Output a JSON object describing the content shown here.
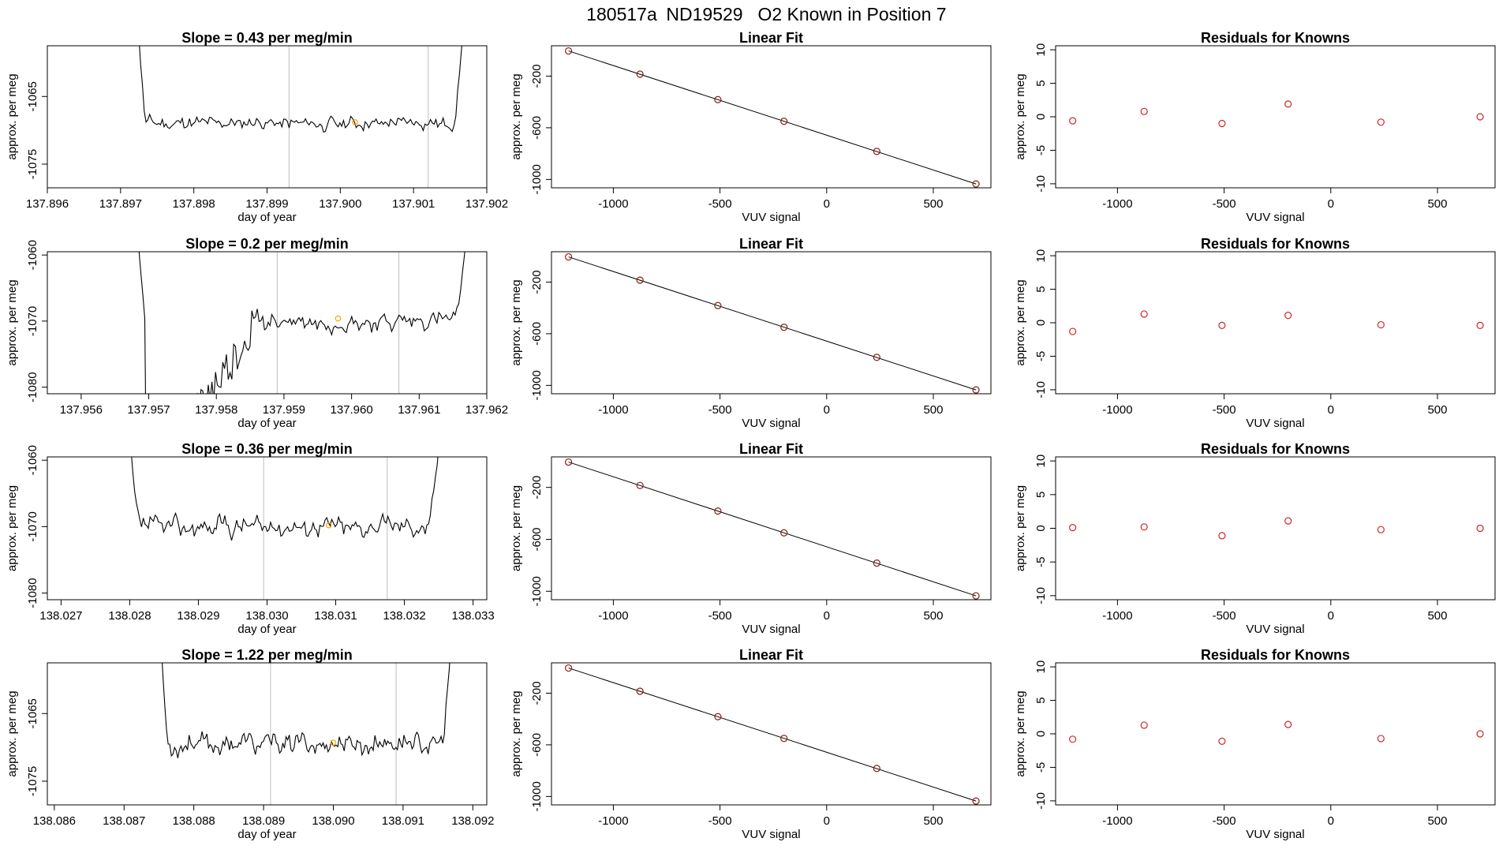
{
  "figure": {
    "title_parts": [
      "180517a",
      "ND19529",
      "O2 Known in Position  7"
    ]
  },
  "colors": {
    "line": "#000000",
    "box": "#000000",
    "vline": "#bebebe",
    "orange": "#ffa500",
    "red": "#cd2626",
    "dark_red": "#8b1a1a"
  },
  "chart_data": [
    {
      "type": "line",
      "title": "Slope =  0.43  per meg/min",
      "xlabel": "day of year",
      "ylabel": "approx. per meg",
      "xlim": [
        137.896,
        137.902
      ],
      "ylim": [
        -1078.5,
        -1057.5
      ],
      "xticks": [
        137.896,
        137.897,
        137.898,
        137.899,
        137.9,
        137.901,
        137.902
      ],
      "xtick_labels": [
        "137.896",
        "137.897",
        "137.898",
        "137.899",
        "137.900",
        "137.901",
        "137.902"
      ],
      "yticks": [
        -1065,
        -1075
      ],
      "ytick_labels": [
        "-1065",
        "-1075"
      ],
      "vlines": [
        137.8993,
        137.9012
      ],
      "orange_point": {
        "x": 137.9002,
        "y": -1068.8
      },
      "signal": {
        "x_start": 137.8971,
        "x_end": 137.9018,
        "left_edge": -1040,
        "right_edge": -1040,
        "plateau": -1069,
        "amplitude": 1.4,
        "tail": 0.05,
        "seed": 11
      }
    },
    {
      "type": "line",
      "title": "Slope =  0.2  per meg/min",
      "xlabel": "day of year",
      "ylabel": "approx. per meg",
      "xlim": [
        137.9555,
        137.962
      ],
      "ylim": [
        -1081,
        -1059.5
      ],
      "xticks": [
        137.956,
        137.957,
        137.958,
        137.959,
        137.96,
        137.961,
        137.962
      ],
      "xtick_labels": [
        "137.956",
        "137.957",
        "137.958",
        "137.959",
        "137.960",
        "137.961",
        "137.962"
      ],
      "yticks": [
        -1060,
        -1070,
        -1080
      ],
      "ytick_labels": [
        "-1060",
        "-1070",
        "-1080"
      ],
      "vlines": [
        137.9589,
        137.9607
      ],
      "orange_point": {
        "x": 137.9598,
        "y": -1069.6
      },
      "signal": {
        "x_start": 137.9567,
        "x_end": 137.9618,
        "left_edge": -1050,
        "right_edge": -1050,
        "plateau": -1070,
        "amplitude": 2.0,
        "tail": 0.05,
        "dip": {
          "from": 137.95695,
          "to": 137.9585,
          "depth": -1095
        },
        "seed": 23
      }
    },
    {
      "type": "line",
      "title": "Slope =  0.36  per meg/min",
      "xlabel": "day of year",
      "ylabel": "approx. per meg",
      "xlim": [
        138.0268,
        138.0332
      ],
      "ylim": [
        -1081,
        -1059.5
      ],
      "xticks": [
        138.027,
        138.028,
        138.029,
        138.03,
        138.031,
        138.032,
        138.033
      ],
      "xtick_labels": [
        "138.027",
        "138.028",
        "138.029",
        "138.030",
        "138.031",
        "138.032",
        "138.033"
      ],
      "yticks": [
        -1060,
        -1070,
        -1080
      ],
      "ytick_labels": [
        "-1060",
        "-1070",
        "-1080"
      ],
      "vlines": [
        138.02995,
        138.03175
      ],
      "orange_point": {
        "x": 138.0309,
        "y": -1069.8
      },
      "signal": {
        "x_start": 138.0279,
        "x_end": 138.0326,
        "left_edge": -1057,
        "right_edge": -1050,
        "plateau": -1070,
        "amplitude": 2.0,
        "tail": 0.05,
        "seed": 37
      }
    },
    {
      "type": "line",
      "title": "Slope =  1.22  per meg/min",
      "xlabel": "day of year",
      "ylabel": "approx. per meg",
      "xlim": [
        138.0859,
        138.0922
      ],
      "ylim": [
        -1078.5,
        -1057.5
      ],
      "xticks": [
        138.086,
        138.087,
        138.088,
        138.089,
        138.09,
        138.091,
        138.092
      ],
      "xtick_labels": [
        "138.086",
        "138.087",
        "138.088",
        "138.089",
        "138.090",
        "138.091",
        "138.092"
      ],
      "yticks": [
        -1065,
        -1075
      ],
      "ytick_labels": [
        "-1065",
        "-1075"
      ],
      "vlines": [
        138.0891,
        138.0909
      ],
      "orange_point": {
        "x": 138.09,
        "y": -1069.3
      },
      "signal": {
        "x_start": 138.0874,
        "x_end": 138.0918,
        "left_edge": -1040,
        "right_edge": -1040,
        "plateau": -1069.5,
        "amplitude": 2.2,
        "tail": 0.05,
        "seed": 53
      }
    },
    {
      "type": "scatter",
      "title": "Linear Fit",
      "xlabel": "VUV signal",
      "ylabel": "approx. per meg",
      "xlim": [
        -1290,
        770
      ],
      "ylim": [
        -1065,
        35
      ],
      "xticks": [
        -1000,
        -500,
        0,
        500
      ],
      "xtick_labels": [
        "-1000",
        "-500",
        "0",
        "500"
      ],
      "yticks": [
        -200,
        -600,
        -1000
      ],
      "ytick_labels": [
        "-200",
        "-600",
        "-1000"
      ],
      "x": [
        -1210,
        -875,
        -510,
        -200,
        235,
        700
      ],
      "y": [
        -5,
        -185,
        -382,
        -550,
        -783,
        -1035
      ],
      "fit_line": {
        "x": [
          -1210,
          700
        ],
        "y": [
          -5,
          -1035
        ]
      }
    },
    {
      "type": "scatter",
      "title": "Linear Fit",
      "xlabel": "VUV signal",
      "ylabel": "approx. per meg",
      "xlim": [
        -1290,
        770
      ],
      "ylim": [
        -1065,
        35
      ],
      "xticks": [
        -1000,
        -500,
        0,
        500
      ],
      "xtick_labels": [
        "-1000",
        "-500",
        "0",
        "500"
      ],
      "yticks": [
        -200,
        -600,
        -1000
      ],
      "ytick_labels": [
        "-200",
        "-600",
        "-1000"
      ],
      "x": [
        -1210,
        -875,
        -510,
        -200,
        235,
        700
      ],
      "y": [
        -5,
        -185,
        -382,
        -550,
        -783,
        -1035
      ],
      "fit_line": {
        "x": [
          -1210,
          700
        ],
        "y": [
          -5,
          -1035
        ]
      }
    },
    {
      "type": "scatter",
      "title": "Linear Fit",
      "xlabel": "VUV signal",
      "ylabel": "approx. per meg",
      "xlim": [
        -1290,
        770
      ],
      "ylim": [
        -1065,
        35
      ],
      "xticks": [
        -1000,
        -500,
        0,
        500
      ],
      "xtick_labels": [
        "-1000",
        "-500",
        "0",
        "500"
      ],
      "yticks": [
        -200,
        -600,
        -1000
      ],
      "ytick_labels": [
        "-200",
        "-600",
        "-1000"
      ],
      "x": [
        -1210,
        -875,
        -510,
        -200,
        235,
        700
      ],
      "y": [
        -5,
        -185,
        -382,
        -550,
        -783,
        -1035
      ],
      "fit_line": {
        "x": [
          -1210,
          700
        ],
        "y": [
          -5,
          -1035
        ]
      }
    },
    {
      "type": "scatter",
      "title": "Linear Fit",
      "xlabel": "VUV signal",
      "ylabel": "approx. per meg",
      "xlim": [
        -1290,
        770
      ],
      "ylim": [
        -1065,
        35
      ],
      "xticks": [
        -1000,
        -500,
        0,
        500
      ],
      "xtick_labels": [
        "-1000",
        "-500",
        "0",
        "500"
      ],
      "yticks": [
        -200,
        -600,
        -1000
      ],
      "ytick_labels": [
        "-200",
        "-600",
        "-1000"
      ],
      "x": [
        -1210,
        -875,
        -510,
        -200,
        235,
        700
      ],
      "y": [
        -5,
        -185,
        -382,
        -550,
        -783,
        -1035
      ],
      "fit_line": {
        "x": [
          -1210,
          700
        ],
        "y": [
          -5,
          -1035
        ]
      }
    },
    {
      "type": "scatter",
      "title": "Residuals for Knowns",
      "xlabel": "VUV signal",
      "ylabel": "approx. per meg",
      "xlim": [
        -1290,
        770
      ],
      "ylim": [
        -10.6,
        10.6
      ],
      "xticks": [
        -1000,
        -500,
        0,
        500
      ],
      "xtick_labels": [
        "-1000",
        "-500",
        "0",
        "500"
      ],
      "yticks": [
        10,
        5,
        0,
        -5,
        -10
      ],
      "ytick_labels": [
        "10",
        "5",
        "0",
        "-5",
        "-10"
      ],
      "x": [
        -1210,
        -875,
        -510,
        -200,
        235,
        700
      ],
      "y": [
        -0.6,
        0.8,
        -1.0,
        1.9,
        -0.8,
        0.0
      ]
    },
    {
      "type": "scatter",
      "title": "Residuals for Knowns",
      "xlabel": "VUV signal",
      "ylabel": "approx. per meg",
      "xlim": [
        -1290,
        770
      ],
      "ylim": [
        -10.6,
        10.6
      ],
      "xticks": [
        -1000,
        -500,
        0,
        500
      ],
      "xtick_labels": [
        "-1000",
        "-500",
        "0",
        "500"
      ],
      "yticks": [
        10,
        5,
        0,
        -5,
        -10
      ],
      "ytick_labels": [
        "10",
        "5",
        "0",
        "-5",
        "-10"
      ],
      "x": [
        -1210,
        -875,
        -510,
        -200,
        235,
        700
      ],
      "y": [
        -1.3,
        1.3,
        -0.4,
        1.1,
        -0.3,
        -0.4
      ]
    },
    {
      "type": "scatter",
      "title": "Residuals for Knowns",
      "xlabel": "VUV signal",
      "ylabel": "approx. per meg",
      "xlim": [
        -1290,
        770
      ],
      "ylim": [
        -10.6,
        10.6
      ],
      "xticks": [
        -1000,
        -500,
        0,
        500
      ],
      "xtick_labels": [
        "-1000",
        "-500",
        "0",
        "500"
      ],
      "yticks": [
        10,
        5,
        0,
        -5,
        -10
      ],
      "ytick_labels": [
        "10",
        "5",
        "0",
        "-5",
        "-10"
      ],
      "x": [
        -1210,
        -875,
        -510,
        -200,
        235,
        700
      ],
      "y": [
        0.1,
        0.2,
        -1.1,
        1.1,
        -0.2,
        0.0
      ]
    },
    {
      "type": "scatter",
      "title": "Residuals for Knowns",
      "xlabel": "VUV signal",
      "ylabel": "approx. per meg",
      "xlim": [
        -1290,
        770
      ],
      "ylim": [
        -10.6,
        10.6
      ],
      "xticks": [
        -1000,
        -500,
        0,
        500
      ],
      "xtick_labels": [
        "-1000",
        "-500",
        "0",
        "500"
      ],
      "yticks": [
        10,
        5,
        0,
        -5,
        -10
      ],
      "ytick_labels": [
        "10",
        "5",
        "0",
        "-5",
        "-10"
      ],
      "x": [
        -1210,
        -875,
        -510,
        -200,
        235,
        700
      ],
      "y": [
        -0.8,
        1.3,
        -1.1,
        1.4,
        -0.7,
        0.0
      ]
    }
  ]
}
